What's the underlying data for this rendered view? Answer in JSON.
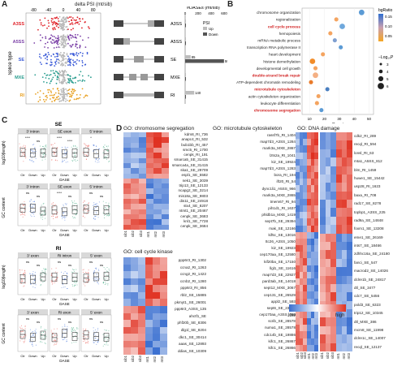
{
  "panels": {
    "A": "A",
    "B": "B",
    "C": "C",
    "D": "D"
  },
  "panelA": {
    "axis_title": "delta PSI (mt/sib)",
    "ticks": [
      "-80",
      "-40",
      "0",
      "40",
      "80"
    ],
    "ylabel": "Splice type",
    "types": [
      {
        "name": "A3SS",
        "color": "#e0232a"
      },
      {
        "name": "A5SS",
        "color": "#7a3fa6"
      },
      {
        "name": "SE",
        "color": "#3b5bd8"
      },
      {
        "name": "MXE",
        "color": "#2a9d8f"
      },
      {
        "name": "RI",
        "color": "#e8a020"
      }
    ],
    "bars_title": "#DASEs (mt/sib)",
    "bar_ticks": [
      "0",
      "200",
      "400",
      "600"
    ],
    "legend_title": "PSI",
    "legend_up": "Up",
    "legend_down": "Down",
    "bar_values": [
      {
        "type": "A3SS",
        "up": "",
        "down": "",
        "up_n": 3,
        "down_n": 3
      },
      {
        "type": "A5SS",
        "up": "",
        "down": "",
        "up_n": 2,
        "down_n": 2
      },
      {
        "type": "SE",
        "up": "85",
        "down": "598",
        "up_n": 85,
        "down_n": 598
      },
      {
        "type": "MXE",
        "up": "",
        "down": "",
        "up_n": 4,
        "down_n": 4
      },
      {
        "type": "RI",
        "up": "140",
        "down": "",
        "up_n": 140,
        "down_n": 10
      }
    ]
  },
  "panelB": {
    "xlabel": "Count",
    "xticks": [
      "10",
      "20",
      "30",
      "40",
      "50"
    ],
    "legend_title": "bgRatio",
    "legend_vals": [
      "0.15",
      "0.10",
      "0.05"
    ],
    "size_title": "−Log₁₀P",
    "size_vals": [
      "3",
      "4",
      "5",
      "6"
    ],
    "terms": [
      {
        "t": "chromosome organization",
        "red": false,
        "count": 45,
        "c": "#5b9bd5",
        "s": 4
      },
      {
        "t": "regionalization",
        "red": false,
        "count": 28,
        "c": "#f4a460",
        "s": 3
      },
      {
        "t": "cell cycle process",
        "red": true,
        "count": 32,
        "c": "#6fa8dc",
        "s": 4
      },
      {
        "t": "hemopoiesis",
        "red": false,
        "count": 24,
        "c": "#f4a460",
        "s": 3
      },
      {
        "t": "mRNA metabolic process",
        "red": false,
        "count": 27,
        "c": "#7f9fd0",
        "s": 3
      },
      {
        "t": "transcription RNA polymerase II",
        "red": false,
        "count": 31,
        "c": "#5b9bd5",
        "s": 3
      },
      {
        "t": "heart development",
        "red": false,
        "count": 19,
        "c": "#f4a460",
        "s": 3
      },
      {
        "t": "histone demethylation",
        "red": false,
        "count": 12,
        "c": "#f28c28",
        "s": 4
      },
      {
        "t": "developmental cell growth",
        "red": false,
        "count": 14,
        "c": "#f4a460",
        "s": 3
      },
      {
        "t": "double-strand break repair",
        "red": true,
        "count": 14,
        "c": "#f4b084",
        "s": 4
      },
      {
        "t": "ATP-dependent chromatin remodeling",
        "red": false,
        "count": 11,
        "c": "#e97b2b",
        "s": 3
      },
      {
        "t": "microtubule cytoskeleton",
        "red": true,
        "count": 22,
        "c": "#4a7fc0",
        "s": 3
      },
      {
        "t": "actin cytoskeleton organization",
        "red": false,
        "count": 16,
        "c": "#f4a460",
        "s": 3
      },
      {
        "t": "leukocyte differentiation",
        "red": false,
        "count": 15,
        "c": "#f4a460",
        "s": 3
      },
      {
        "t": "chromosome segregation",
        "red": true,
        "count": 18,
        "c": "#5b9bd5",
        "s": 3
      }
    ]
  },
  "panelC": {
    "se_title": "SE",
    "ri_title": "RI",
    "se_top": [
      "3' intron",
      "SE exon",
      "5' intron"
    ],
    "se_bottom": [
      "3' intron",
      "SE exon",
      "5' intron"
    ],
    "ri_top": [
      "3' exon",
      "RI intron",
      "5' exon"
    ],
    "ri_bottom": [
      "3' exon",
      "RI exon",
      "5' exon"
    ],
    "ylab_len": "log10(length)",
    "ylab_gc": "GC content",
    "xcats": [
      "Ctr",
      "Down",
      "Up"
    ],
    "xlabel": "DASE",
    "sig_se_top": [
      [
        "****",
        "ns"
      ],
      [
        "****",
        "****"
      ],
      [
        "*",
        ""
      ]
    ],
    "sig_se_bottom": [
      [
        "ns",
        "ns"
      ],
      [
        "****",
        "ns"
      ],
      [
        "ns",
        "ns"
      ]
    ],
    "sig_ri_top": [
      [
        "ns",
        "ns"
      ],
      [
        "ns",
        "ns"
      ],
      [
        "ns",
        "ns"
      ]
    ],
    "sig_ri_bottom": [
      [
        "ns",
        "ns"
      ],
      [
        "ns",
        "ns"
      ],
      [
        "ns",
        "ns"
      ]
    ]
  },
  "panelD": {
    "legend_low": "low",
    "legend_high": "high",
    "cols": [
      "sib1",
      "sib2",
      "sib3",
      "mt1",
      "mt2",
      "mt3"
    ],
    "heatmaps": {
      "seg": {
        "title": "GO: chromosome segregation",
        "genes": [
          "kdm8_RI_736",
          "anapc4_RI_532",
          "bub1bb_RI_457",
          "smc5_RI_1700",
          "cenpk_RI_191",
          "smarca5_SE_31415",
          "smarca4a_SE_31415",
          "ska1_SE_29709",
          "espl1_SE_5582",
          "nek1_SE_3039",
          "trip13_SE_12133",
          "ncapg2_SE_3214",
          "mis18a_SE_9803",
          "dis11_SE_24918",
          "stx4_SE_8207",
          "ntmt1_SE_20467",
          "cenpk_SE_3683",
          "knl1_SE_7728",
          "cenpk_SE_3684"
        ]
      },
      "kin": {
        "title": "GO: cell cycle kinase",
        "genes": [
          "ppp6r3_RI_1302",
          "ccna2_RI_1263",
          "ccng2_RI_1422",
          "ccnb2_RI_1280",
          "ppp6r3_RI_856",
          "rbl2_SE_15885",
          "pkmyt1_SE_26001",
          "ppp6r3_A3SS_135",
          "ahctf1_SE",
          "phf20b_SE_8306",
          "dlg1l_SE_8204",
          "dkc1_SE_30414",
          "aaas_SE_12893",
          "ddias_SE_10309"
        ]
      },
      "mic": {
        "title": "GO: microtubule cytoskeleton",
        "genes": [
          "rassf7b_RI_1404",
          "map7d3_A3SS_1284",
          "mark3a_MXE_2867",
          "lzts2a_RI_1041",
          "kiz_SE_19924",
          "map7d3_A3SS_1283",
          "bora_RI_194",
          "ift20_RI_54",
          "dync1li1_A5SS_966",
          "mark3a_MXE_2865",
          "tmem67_RI_94",
          "pih1d1_RI_1637",
          "phldb1a_MXE_1419",
          "sept7b_SE_29394",
          "mak_SE_12166",
          "kif5c_SE_13016",
          "ttc26_A3SS_1050",
          "kiz_SE_19923",
          "cep170aa_SE_12580",
          "kif20ba_SE_17150",
          "llgl1_SE_11616",
          "map7d3_SE_22927",
          "pard3ab_SE_14018",
          "sept12_MXE_3067",
          "cep131_SE_26529",
          "appl2_SE_593",
          "sept6_SE_23010",
          "cep170aa_A3SS_665",
          "scrib_SE_28578",
          "numa1_SE_28578",
          "cdc14b_SE_19886",
          "kifc1_SE_26867",
          "kifc1_SE_26866"
        ]
      },
      "dna": {
        "title": "GO: DNA damage",
        "genes": [
          "cdk2_RI_289",
          "recql_RI_594",
          "lonsl_RI_63",
          "mta1_A5SS_812",
          "blm_RI_1459",
          "huwe1_SE_15442",
          "usp28_RI_1623",
          "baxa_RI_708",
          "rad17_SE_8278",
          "topbp1_A3SS_225",
          "rad9a_SE_14848",
          "foxm1_SE_13208",
          "eme1_SE_26169",
          "ints7_SE_18466",
          "zdhhc16a_SE_24180",
          "fanci_SE_547",
          "macrod2_SE_14026",
          "dclre1b_SE_24817",
          "dtl_SE_3477",
          "cdc7_SE_5456",
          "pold3_SE_6323",
          "trip12_SE_10345",
          "dtl_MXE_386",
          "mcm8_SE_11998",
          "dclre1c_SE_14007",
          "recql_SE_12137"
        ]
      }
    }
  }
}
